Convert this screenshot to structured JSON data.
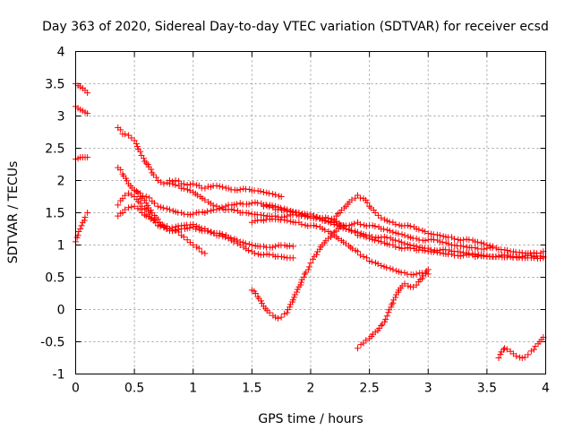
{
  "chart_data": {
    "type": "scatter",
    "title": "Day 363 of 2020, Sidereal Day-to-day VTEC variation (SDTVAR) for receiver ecsd",
    "xlabel": "GPS time / hours",
    "ylabel": "SDTVAR / TECUs",
    "xlim": [
      0,
      4
    ],
    "ylim": [
      -1,
      4
    ],
    "xticks": [
      0,
      0.5,
      1,
      1.5,
      2,
      2.5,
      3,
      3.5,
      4
    ],
    "yticks": [
      -1,
      -0.5,
      0,
      0.5,
      1,
      1.5,
      2,
      2.5,
      3,
      3.5,
      4
    ],
    "xtick_labels": [
      "0",
      "0.5",
      "1",
      "1.5",
      "2",
      "2.5",
      "3",
      "3.5",
      "4"
    ],
    "ytick_labels": [
      "-1",
      "-0.5",
      "0",
      "0.5",
      "1",
      "1.5",
      "2",
      "2.5",
      "3",
      "3.5",
      "4"
    ],
    "grid": true,
    "marker": "+",
    "color": "#ff0000",
    "series": [
      {
        "name": "s1",
        "x": [
          0.0,
          0.02,
          0.04,
          0.06,
          0.08,
          0.1
        ],
        "y": [
          3.5,
          3.47,
          3.45,
          3.43,
          3.4,
          3.36
        ]
      },
      {
        "name": "s2",
        "x": [
          0.0,
          0.02,
          0.04,
          0.06,
          0.08,
          0.1
        ],
        "y": [
          3.15,
          3.12,
          3.1,
          3.08,
          3.06,
          3.04
        ]
      },
      {
        "name": "s3",
        "x": [
          0.0,
          0.02,
          0.04,
          0.06,
          0.08,
          0.1
        ],
        "y": [
          2.33,
          2.34,
          2.36,
          2.36,
          2.36,
          2.36
        ]
      },
      {
        "name": "s4",
        "x": [
          0.0,
          0.02,
          0.04,
          0.06,
          0.08,
          0.1
        ],
        "y": [
          1.05,
          1.15,
          1.25,
          1.35,
          1.43,
          1.5
        ]
      },
      {
        "name": "s5",
        "x": [
          0.36,
          0.4,
          0.45,
          0.5,
          0.55,
          0.6,
          0.65,
          0.7,
          0.75,
          0.8,
          0.85,
          0.9,
          0.95,
          1.0,
          1.05,
          1.1,
          1.15,
          1.2,
          1.25,
          1.3,
          1.4,
          1.5,
          1.6,
          1.7,
          1.75
        ],
        "y": [
          2.82,
          2.72,
          2.7,
          2.62,
          2.45,
          2.27,
          2.12,
          2.0,
          1.95,
          2.0,
          2.0,
          1.95,
          1.93,
          1.95,
          1.92,
          1.88,
          1.9,
          1.92,
          1.9,
          1.88,
          1.86,
          1.84,
          1.82,
          1.78,
          1.75
        ]
      },
      {
        "name": "s6",
        "x": [
          0.36,
          0.4,
          0.45,
          0.5,
          0.55,
          0.6,
          0.65,
          0.7,
          0.8,
          0.9,
          1.0,
          1.1,
          1.2,
          1.3,
          1.4,
          1.5,
          1.6,
          1.7,
          1.8,
          1.9,
          2.0,
          2.1,
          2.2,
          2.3,
          2.4,
          2.5,
          2.6,
          2.7,
          2.8,
          2.9,
          3.0,
          3.1,
          3.2,
          3.3,
          3.4,
          3.5,
          3.6,
          3.7,
          3.8,
          3.9,
          3.98
        ],
        "y": [
          2.2,
          2.1,
          1.95,
          1.85,
          1.8,
          1.75,
          1.68,
          1.6,
          1.55,
          1.5,
          1.48,
          1.5,
          1.55,
          1.62,
          1.65,
          1.65,
          1.62,
          1.6,
          1.55,
          1.5,
          1.45,
          1.38,
          1.32,
          1.3,
          1.35,
          1.3,
          1.25,
          1.2,
          1.15,
          1.1,
          1.08,
          1.05,
          1.0,
          0.98,
          0.96,
          0.95,
          0.93,
          0.9,
          0.88,
          0.88,
          0.9
        ]
      },
      {
        "name": "s7",
        "x": [
          0.36,
          0.4,
          0.45,
          0.5,
          0.55,
          0.6,
          0.65,
          0.7,
          0.75,
          0.8,
          0.85,
          0.9,
          0.95,
          1.0,
          1.05,
          1.1
        ],
        "y": [
          1.62,
          1.72,
          1.8,
          1.75,
          1.65,
          1.55,
          1.42,
          1.35,
          1.28,
          1.25,
          1.22,
          1.15,
          1.08,
          1.0,
          0.95,
          0.87
        ]
      },
      {
        "name": "s8",
        "x": [
          0.36,
          0.4,
          0.45,
          0.5,
          0.55,
          0.6,
          0.7,
          0.8,
          0.9,
          1.0,
          1.1,
          1.2,
          1.3,
          1.4,
          1.5,
          1.6,
          1.7,
          1.8,
          1.85
        ],
        "y": [
          1.45,
          1.5,
          1.58,
          1.6,
          1.55,
          1.45,
          1.3,
          1.22,
          1.25,
          1.28,
          1.22,
          1.15,
          1.1,
          1.0,
          0.9,
          0.85,
          0.82,
          0.8,
          0.8
        ]
      },
      {
        "name": "s9",
        "x": [
          0.5,
          0.55,
          0.6,
          0.65,
          0.7,
          0.75,
          0.8,
          0.9,
          1.0,
          1.1,
          1.2,
          1.3,
          1.4,
          1.5,
          1.6,
          1.7,
          1.8,
          1.85
        ],
        "y": [
          1.85,
          1.75,
          1.65,
          1.5,
          1.4,
          1.3,
          1.25,
          1.3,
          1.32,
          1.25,
          1.18,
          1.12,
          1.05,
          1.0,
          0.98,
          0.98,
          0.98,
          0.98
        ]
      },
      {
        "name": "s10",
        "x": [
          0.8,
          0.9,
          1.0,
          1.1,
          1.2,
          1.3,
          1.4,
          1.5,
          1.6,
          1.7,
          1.8,
          1.9,
          2.0,
          2.1,
          2.2,
          2.3,
          2.4,
          2.5,
          2.6,
          2.7,
          2.8,
          2.9,
          3.0,
          3.1,
          3.2,
          3.3,
          3.4,
          3.5,
          3.6,
          3.7,
          3.8,
          3.9,
          3.98
        ],
        "y": [
          1.95,
          1.88,
          1.82,
          1.7,
          1.6,
          1.55,
          1.5,
          1.48,
          1.46,
          1.45,
          1.45,
          1.45,
          1.42,
          1.4,
          1.35,
          1.25,
          1.15,
          1.1,
          1.05,
          1.0,
          0.95,
          0.92,
          0.9,
          0.88,
          0.86,
          0.84,
          0.82,
          0.82,
          0.82,
          0.82,
          0.82,
          0.82,
          0.82
        ]
      },
      {
        "name": "s11",
        "x": [
          1.6,
          1.7,
          1.8,
          1.9,
          2.0,
          2.1,
          2.2,
          2.3,
          2.4,
          2.5,
          2.6,
          2.7,
          2.8,
          2.9,
          3.0,
          3.1,
          3.2,
          3.3,
          3.4,
          3.5,
          3.6,
          3.7,
          3.8,
          3.9,
          3.98
        ],
        "y": [
          1.6,
          1.55,
          1.52,
          1.5,
          1.48,
          1.42,
          1.38,
          1.25,
          1.2,
          1.15,
          1.12,
          1.08,
          1.02,
          0.98,
          0.95,
          0.92,
          0.9,
          0.88,
          0.86,
          0.84,
          0.83,
          0.82,
          0.8,
          0.8,
          0.8
        ]
      },
      {
        "name": "s12",
        "x": [
          1.5,
          1.6,
          1.7,
          1.8,
          1.9,
          2.0,
          2.1,
          2.2,
          2.3,
          2.4,
          2.45,
          2.5,
          2.6,
          2.7,
          2.8,
          2.9,
          3.0
        ],
        "y": [
          1.35,
          1.38,
          1.4,
          1.38,
          1.35,
          1.3,
          1.25,
          1.15,
          1.02,
          0.9,
          0.82,
          0.75,
          0.68,
          0.62,
          0.57,
          0.55,
          0.55
        ]
      },
      {
        "name": "s13",
        "x": [
          2.2,
          2.25,
          2.3,
          2.35,
          2.4,
          2.45,
          2.5,
          2.55,
          2.6,
          2.7,
          2.8,
          2.9,
          3.0,
          3.1,
          3.2,
          3.3,
          3.4,
          3.5,
          3.55
        ],
        "y": [
          1.4,
          1.5,
          1.6,
          1.7,
          1.77,
          1.72,
          1.6,
          1.5,
          1.42,
          1.35,
          1.3,
          1.25,
          1.18,
          1.15,
          1.12,
          1.08,
          1.05,
          1.0,
          0.98
        ]
      },
      {
        "name": "s14",
        "x": [
          1.5,
          1.55,
          1.6,
          1.65,
          1.7,
          1.75,
          1.8,
          1.85,
          1.9,
          1.95,
          2.0,
          2.05,
          2.1,
          2.15,
          2.2,
          2.25
        ],
        "y": [
          0.3,
          0.2,
          0.05,
          -0.05,
          -0.12,
          -0.12,
          -0.05,
          0.15,
          0.35,
          0.55,
          0.72,
          0.85,
          1.0,
          1.1,
          1.2,
          1.3
        ]
      },
      {
        "name": "s15",
        "x": [
          2.4,
          2.45,
          2.5,
          2.55,
          2.6,
          2.65,
          2.7,
          2.75,
          2.8,
          2.85,
          2.9,
          2.95,
          3.0
        ],
        "y": [
          -0.6,
          -0.52,
          -0.45,
          -0.35,
          -0.25,
          -0.1,
          0.1,
          0.3,
          0.4,
          0.35,
          0.38,
          0.48,
          0.62
        ]
      },
      {
        "name": "s16",
        "x": [
          3.6,
          3.65,
          3.7,
          3.75,
          3.8,
          3.85,
          3.9,
          3.95,
          3.98
        ],
        "y": [
          -0.75,
          -0.6,
          -0.65,
          -0.72,
          -0.75,
          -0.7,
          -0.62,
          -0.5,
          -0.43
        ]
      }
    ]
  }
}
